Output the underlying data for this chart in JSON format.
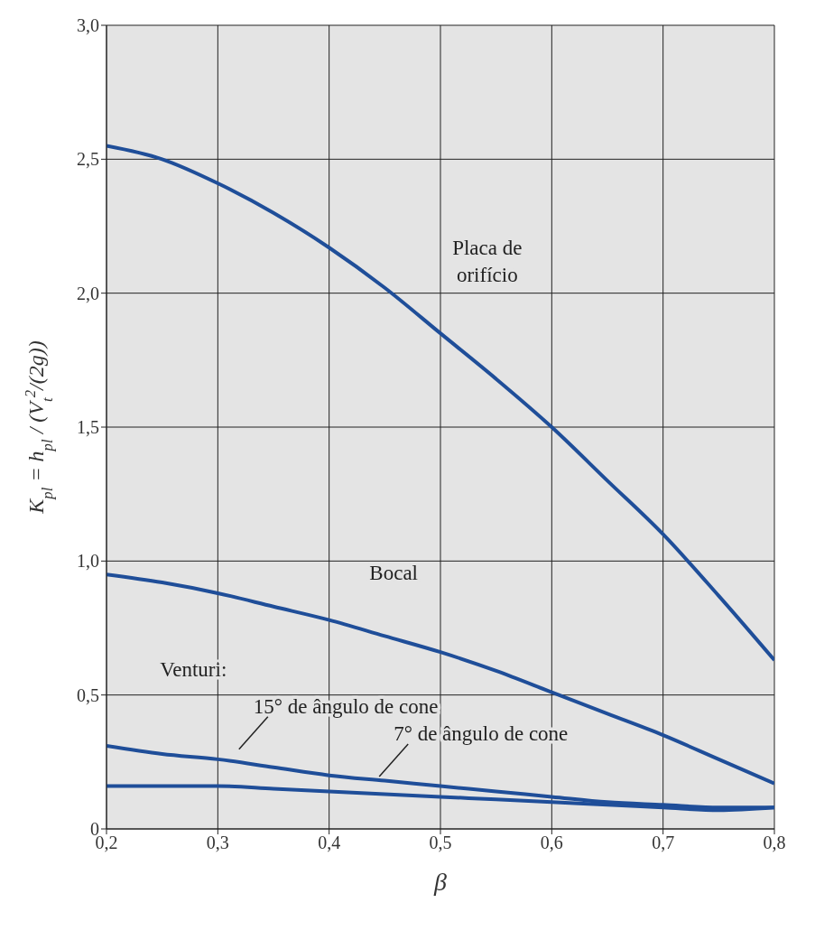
{
  "chart_data": {
    "type": "line",
    "xlabel": "β",
    "ylabel": "K$_{pl}$ = h$_{pl}$ / (V$_{t}$$^{2}$/(2g))",
    "x": [
      0.2,
      0.25,
      0.3,
      0.35,
      0.4,
      0.45,
      0.5,
      0.55,
      0.6,
      0.65,
      0.7,
      0.75,
      0.8
    ],
    "series": [
      {
        "color": "#1f4e99",
        "values": [
          2.55,
          2.5,
          2.41,
          2.3,
          2.17,
          2.02,
          1.85,
          1.68,
          1.5,
          1.3,
          1.1,
          0.87,
          0.63
        ]
      },
      {
        "color": "#1f4e99",
        "values": [
          0.95,
          0.92,
          0.88,
          0.83,
          0.78,
          0.72,
          0.66,
          0.59,
          0.51,
          0.43,
          0.35,
          0.26,
          0.17
        ]
      },
      {
        "color": "#1f4e99",
        "values": [
          0.31,
          0.28,
          0.26,
          0.23,
          0.2,
          0.18,
          0.16,
          0.14,
          0.12,
          0.1,
          0.09,
          0.08,
          0.08
        ]
      },
      {
        "color": "#1f4e99",
        "values": [
          0.16,
          0.16,
          0.16,
          0.15,
          0.14,
          0.13,
          0.12,
          0.11,
          0.1,
          0.09,
          0.08,
          0.07,
          0.08
        ]
      }
    ],
    "xlim": [
      0.2,
      0.8
    ],
    "xticks": [
      {
        "value": 0.2,
        "label": "0,2"
      },
      {
        "value": 0.3,
        "label": "0,3"
      },
      {
        "value": 0.4,
        "label": "0,4"
      },
      {
        "value": 0.5,
        "label": "0,5"
      },
      {
        "value": 0.6,
        "label": "0,6"
      },
      {
        "value": 0.7,
        "label": "0,7"
      },
      {
        "value": 0.8,
        "label": "0,8"
      }
    ],
    "ylim": [
      0,
      3
    ],
    "yticks": [
      0,
      {
        "value": 0.5,
        "label": "0,5"
      },
      {
        "value": 1,
        "label": "1,0"
      },
      {
        "value": 1.5,
        "label": "1,5"
      },
      {
        "value": 2,
        "label": "2,0"
      },
      {
        "value": 2.5,
        "label": "2,5"
      },
      {
        "value": 3,
        "label": "3,0"
      }
    ],
    "grid": true,
    "marker": "none",
    "line_style": "solid",
    "annotations": [
      "Placa de\norifício",
      "Bocal",
      "Venturi:",
      "15° de ângulo de cone",
      "7° de ângulo de cone"
    ]
  }
}
